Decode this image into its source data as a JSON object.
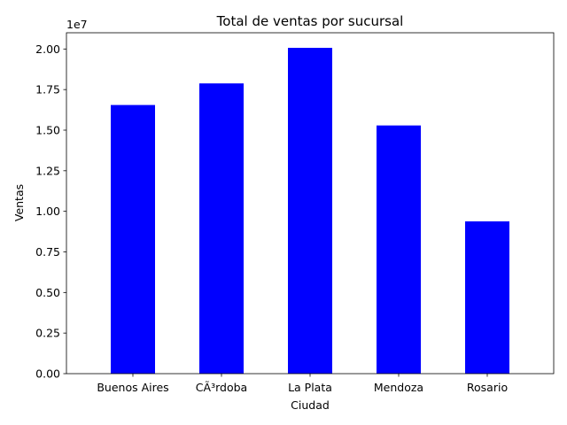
{
  "chart_data": {
    "type": "bar",
    "title": "Total de ventas por sucursal",
    "xlabel": "Ciudad",
    "ylabel": "Ventas",
    "y_offset_label": "1e7",
    "categories": [
      "Buenos Aires",
      "CÃ³rdoba",
      "La Plata",
      "Mendoza",
      "Rosario"
    ],
    "values": [
      16550000,
      17880000,
      20070000,
      15290000,
      9380000
    ],
    "ylim": [
      0,
      21000000
    ],
    "yticks": [
      0,
      2500000,
      5000000,
      7500000,
      10000000,
      12500000,
      15000000,
      17500000,
      20000000
    ],
    "ytick_labels": [
      "0.00",
      "0.25",
      "0.50",
      "0.75",
      "1.00",
      "1.25",
      "1.50",
      "1.75",
      "2.00"
    ],
    "bar_color": "#0000ff",
    "grid": false,
    "legend": "none"
  }
}
